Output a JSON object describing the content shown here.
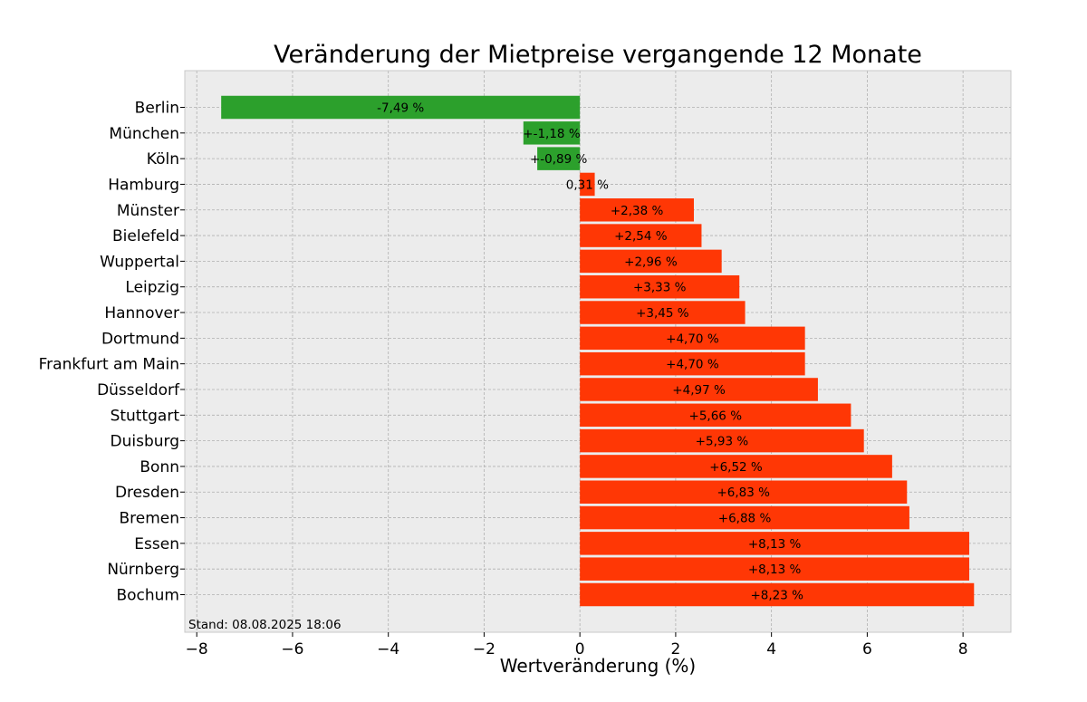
{
  "chart_data": {
    "type": "bar",
    "orientation": "horizontal",
    "title": "Veränderung der Mietpreise vergangende 12 Monate",
    "xlabel": "Wertveränderung (%)",
    "ylabel": "",
    "xlim": [
      -8.25,
      9.0
    ],
    "xticks": [
      -8,
      -6,
      -4,
      -2,
      0,
      2,
      4,
      6,
      8
    ],
    "xtick_labels": [
      "−8",
      "−6",
      "−4",
      "−2",
      "0",
      "2",
      "4",
      "6",
      "8"
    ],
    "grid": true,
    "note": "Stand: 08.08.2025 18:06",
    "colors": {
      "positive": "#ff3705",
      "negative": "#2ca02c",
      "background": "#ececec"
    },
    "categories": [
      "Berlin",
      "München",
      "Köln",
      "Hamburg",
      "Münster",
      "Bielefeld",
      "Wuppertal",
      "Leipzig",
      "Hannover",
      "Dortmund",
      "Frankfurt am Main",
      "Düsseldorf",
      "Stuttgart",
      "Duisburg",
      "Bonn",
      "Dresden",
      "Bremen",
      "Essen",
      "Nürnberg",
      "Bochum"
    ],
    "values": [
      -7.49,
      -1.18,
      -0.89,
      0.31,
      2.38,
      2.54,
      2.96,
      3.33,
      3.45,
      4.7,
      4.7,
      4.97,
      5.66,
      5.93,
      6.52,
      6.83,
      6.88,
      8.13,
      8.13,
      8.23
    ],
    "value_labels": [
      "-7,49 %",
      "+-1,18 %",
      "+-0,89 %",
      "0,31 %",
      "+2,38 %",
      "+2,54 %",
      "+2,96 %",
      "+3,33 %",
      "+3,45 %",
      "+4,70 %",
      "+4,70 %",
      "+4,97 %",
      "+5,66 %",
      "+5,93 %",
      "+6,52 %",
      "+6,83 %",
      "+6,88 %",
      "+8,13 %",
      "+8,13 %",
      "+8,23 %"
    ]
  }
}
